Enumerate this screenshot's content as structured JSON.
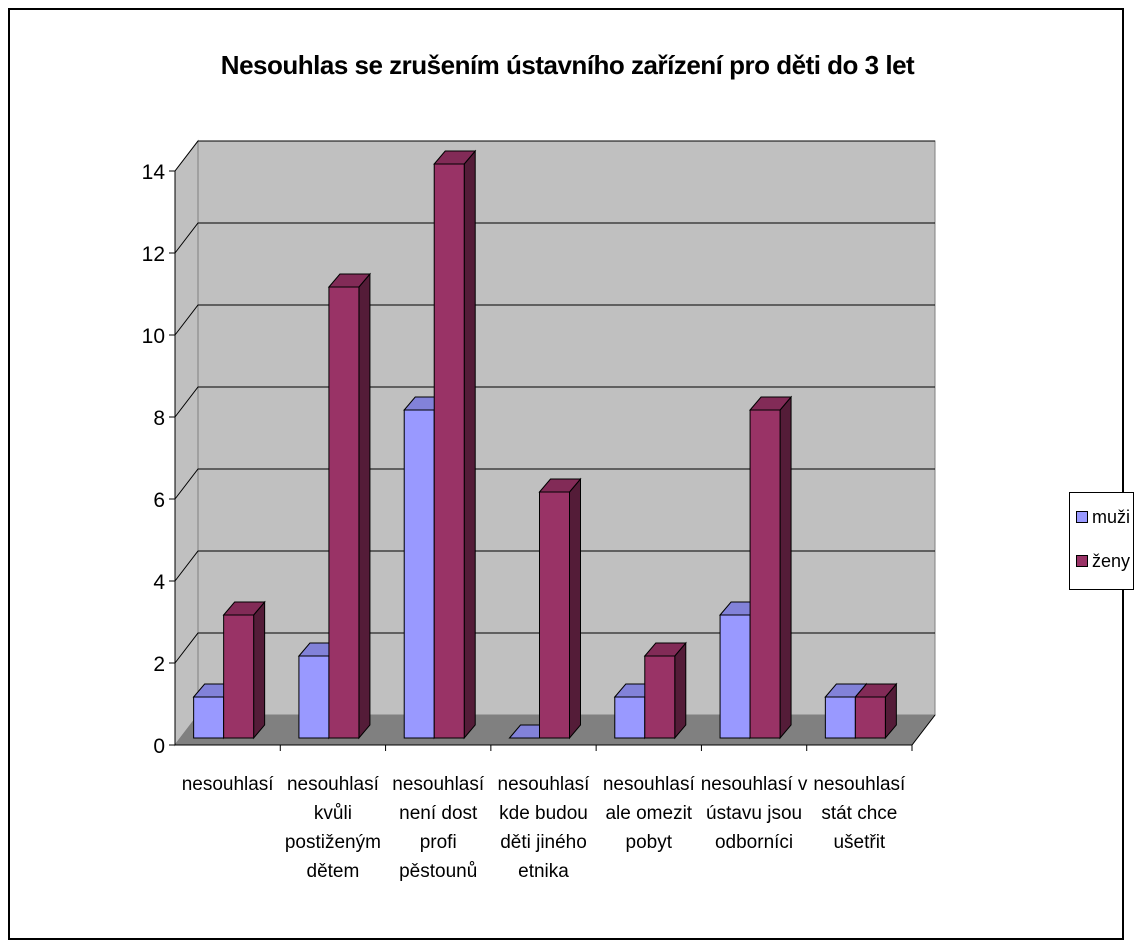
{
  "chart_data": {
    "type": "bar",
    "title": "Nesouhlas se zrušením ústavního zařízení pro děti do 3 let",
    "categories": [
      [
        "nesouhlasí"
      ],
      [
        "nesouhlasí",
        "kvůli",
        "postiženým",
        "dětem"
      ],
      [
        "nesouhlasí",
        "není dost",
        "profi",
        "pěstounů"
      ],
      [
        "nesouhlasí",
        "kde budou",
        "děti jiného",
        "etnika"
      ],
      [
        "nesouhlasí",
        "ale omezit",
        "pobyt"
      ],
      [
        "nesouhlasí v",
        "ústavu jsou",
        "odborníci"
      ],
      [
        "nesouhlasí",
        "stát chce",
        "ušetřit"
      ]
    ],
    "series": [
      {
        "name": "muži",
        "values": [
          1,
          2,
          8,
          0,
          1,
          3,
          1
        ],
        "color": "#9999ff"
      },
      {
        "name": "ženy",
        "values": [
          3,
          11,
          14,
          6,
          2,
          8,
          1
        ],
        "color": "#993366"
      }
    ],
    "ylim": [
      0,
      14
    ],
    "yticks": [
      "0",
      "2",
      "4",
      "6",
      "8",
      "10",
      "12",
      "14"
    ],
    "grid": true,
    "legend_position": "right",
    "style": "3d-clustered-column"
  }
}
